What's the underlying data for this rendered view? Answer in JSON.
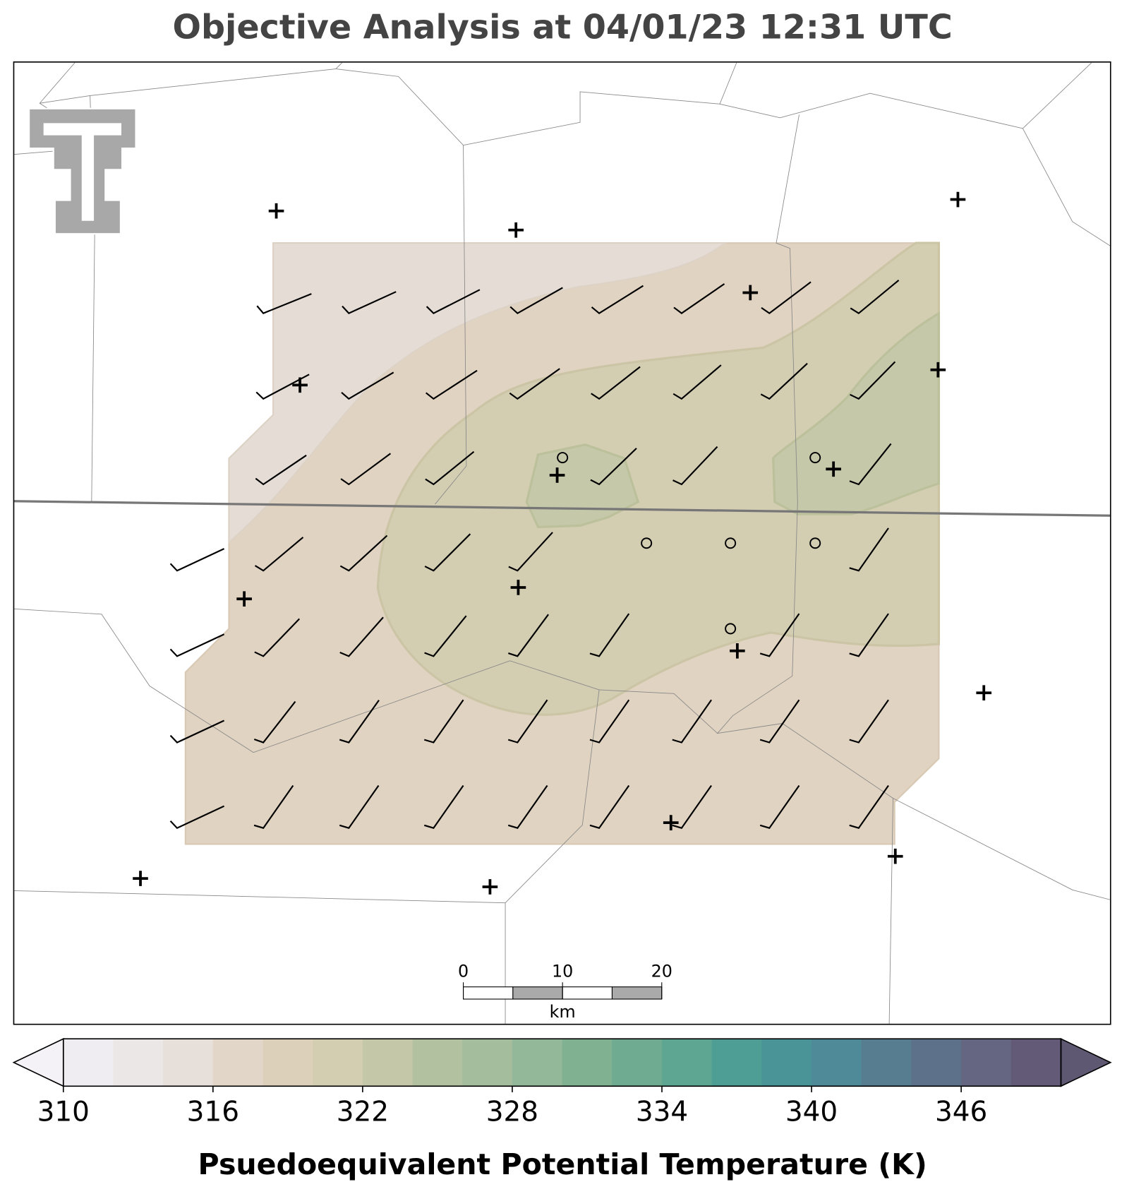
{
  "title": "Objective Analysis at 04/01/23 12:31 UTC",
  "scale_bar": {
    "ticks": [
      0,
      10,
      20
    ],
    "lim": [
      0,
      20
    ],
    "unit": "km"
  },
  "colorbar": {
    "label": "Psuedoequivalent Potential Temperature (K)",
    "lim": [
      310,
      350
    ],
    "ticks": [
      310,
      316,
      322,
      328,
      334,
      340,
      346
    ],
    "colors": [
      "#efedf1",
      "#ebe7e7",
      "#e6dfda",
      "#e2d6c8",
      "#ddd0bb",
      "#d3ceb1",
      "#c4c8a9",
      "#b2c2a1",
      "#a3bd9d",
      "#92b799",
      "#80b191",
      "#6fab90",
      "#5ea592",
      "#4f9e95",
      "#4a9497",
      "#4e8a97",
      "#577d91",
      "#5e718a",
      "#656681",
      "#635a77"
    ],
    "under_color": "#f4f2f7",
    "over_color": "#5f5872"
  }
}
